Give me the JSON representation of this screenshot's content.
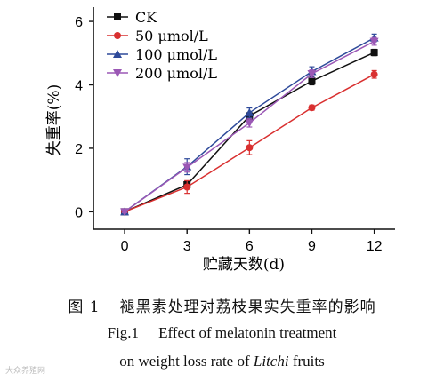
{
  "chart_data": {
    "type": "line",
    "xlabel": "贮藏天数(d)",
    "ylabel": "失重率(%)",
    "x": [
      0,
      3,
      6,
      9,
      12
    ],
    "xticks": [
      "0",
      "3",
      "6",
      "9",
      "12"
    ],
    "yticks": [
      "0",
      "2",
      "4",
      "6"
    ],
    "xlim": [
      -1.5,
      13.0
    ],
    "ylim": [
      -0.55,
      6.45
    ],
    "legend_position": "top-left",
    "series": [
      {
        "name": "CK",
        "color": "#111111",
        "marker": "square",
        "values": [
          0.0,
          0.85,
          3.02,
          4.12,
          5.02
        ],
        "errors": [
          0.03,
          0.12,
          0.1,
          0.12,
          0.1
        ]
      },
      {
        "name": "50 μmol/L",
        "color": "#d93030",
        "marker": "circle",
        "values": [
          0.0,
          0.78,
          2.02,
          3.28,
          4.33
        ],
        "errors": [
          0.03,
          0.2,
          0.22,
          0.08,
          0.12
        ]
      },
      {
        "name": "100 μmol/L",
        "color": "#2e4a9a",
        "marker": "triangle-up",
        "values": [
          0.0,
          1.42,
          3.12,
          4.42,
          5.48
        ],
        "errors": [
          0.03,
          0.25,
          0.15,
          0.15,
          0.12
        ]
      },
      {
        "name": "200 μmol/L",
        "color": "#9b58b5",
        "marker": "triangle-down",
        "values": [
          0.0,
          1.4,
          2.8,
          4.35,
          5.37
        ],
        "errors": [
          0.03,
          0.15,
          0.13,
          0.12,
          0.12
        ]
      }
    ]
  },
  "caption": {
    "cn_label": "图 1",
    "cn_text": "褪黑素处理对荔枝果实失重率的影响",
    "en_label": "Fig.1",
    "en_text1": "Effect of melatonin treatment",
    "en_text2_pre": "on weight loss rate of ",
    "en_text2_italic": "Litchi",
    "en_text2_post": " fruits"
  },
  "watermark": "大众养殖网"
}
